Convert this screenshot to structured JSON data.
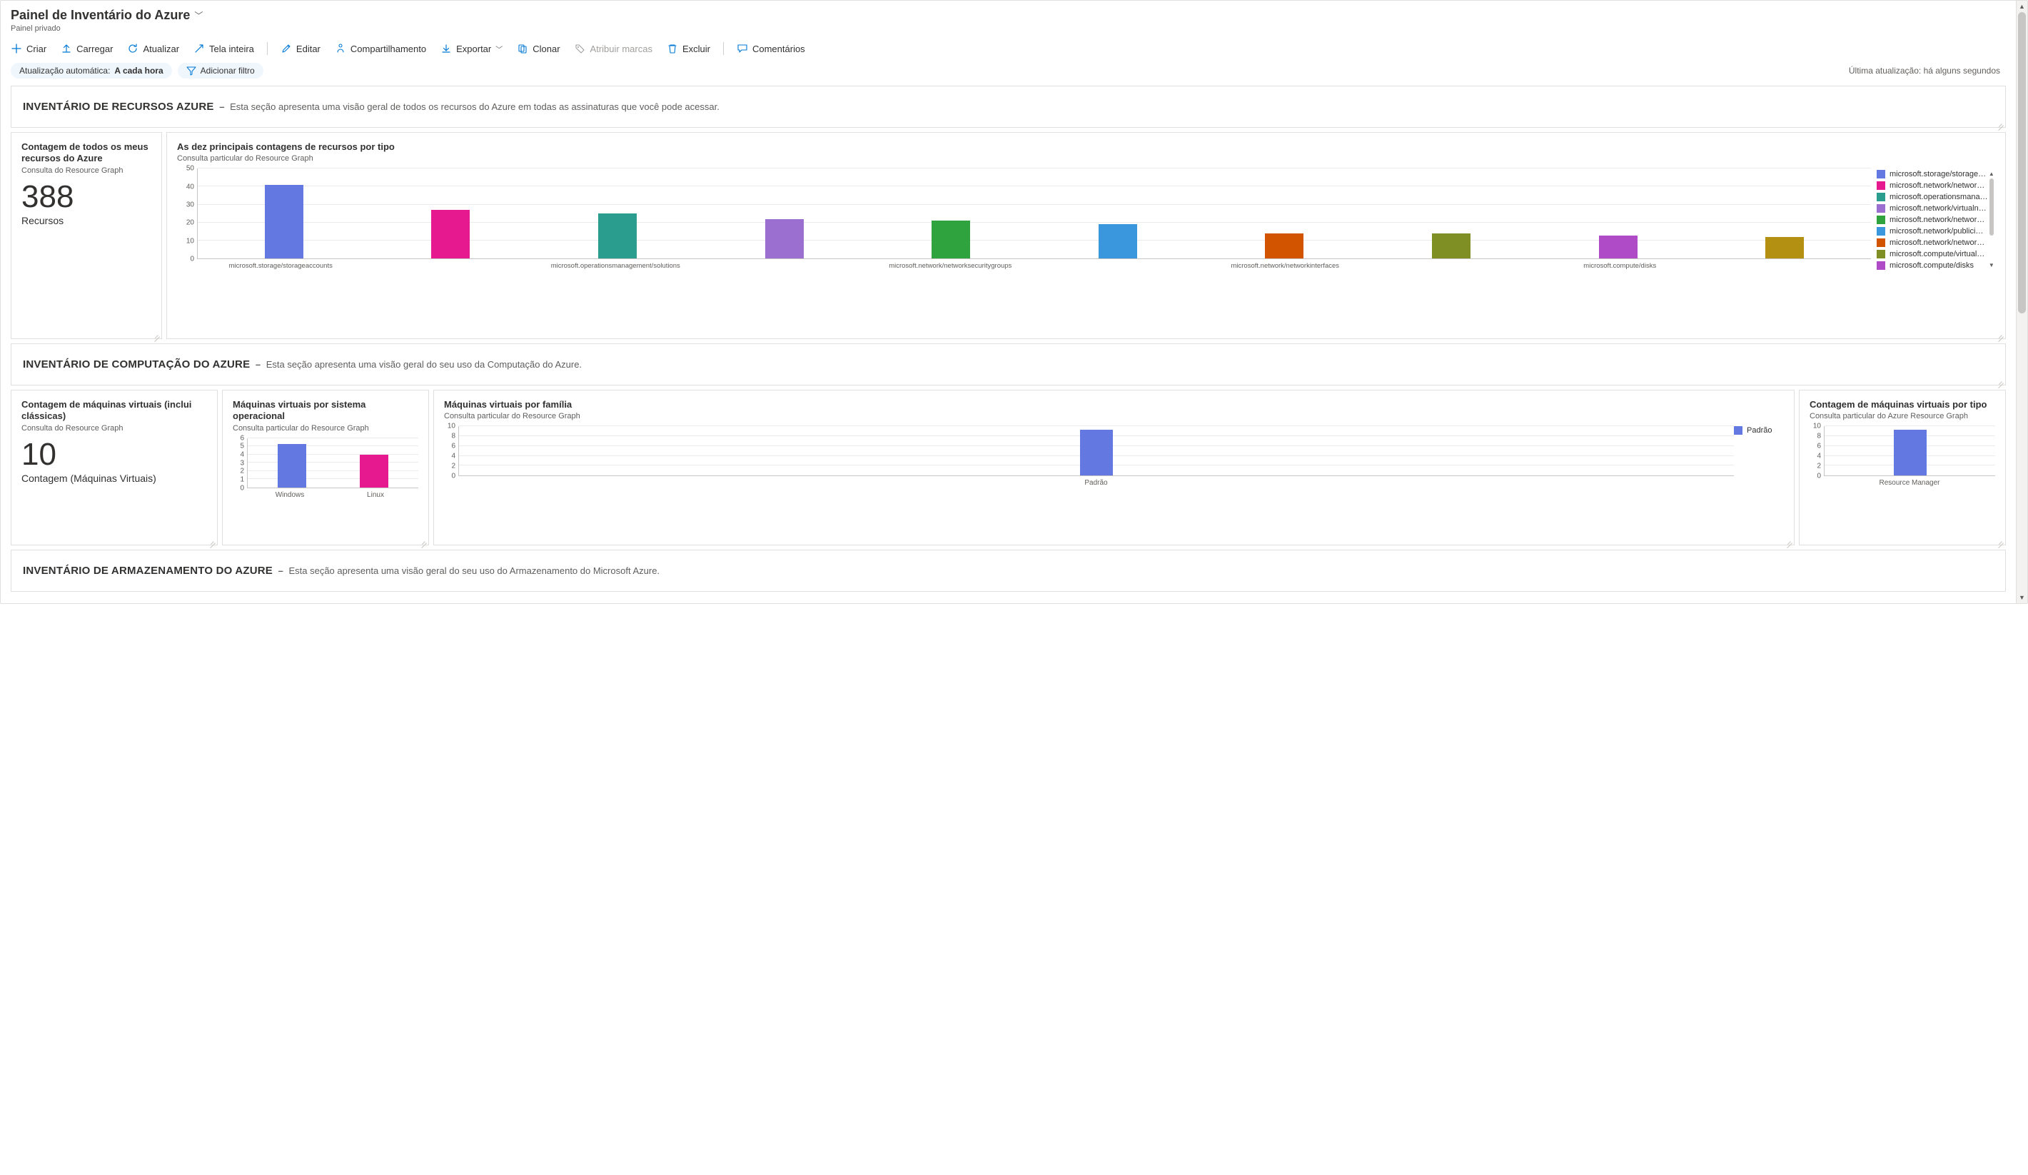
{
  "header": {
    "title": "Painel de Inventário do Azure",
    "subtitle": "Painel privado"
  },
  "toolbar": {
    "create": "Criar",
    "upload": "Carregar",
    "refresh": "Atualizar",
    "fullscreen": "Tela inteira",
    "edit": "Editar",
    "share": "Compartilhamento",
    "export": "Exportar",
    "clone": "Clonar",
    "assign_tags": "Atribuir marcas",
    "delete": "Excluir",
    "feedback": "Comentários"
  },
  "filters": {
    "autorefresh_label": "Atualização automática: ",
    "autorefresh_value": "A cada hora",
    "add_filter": "Adicionar filtro",
    "last_updated_label": "Última atualização: ",
    "last_updated_value": "há alguns segundos"
  },
  "colors": {
    "icon_blue": "#0078d4",
    "grid": "#edebe9",
    "axis": "#c8c6c4",
    "tile_border": "#e1dfdd",
    "pill_bg": "#eff6fc"
  },
  "sections": {
    "resources": {
      "title": "INVENTÁRIO DE RECURSOS AZURE",
      "desc": "Esta seção apresenta uma visão geral de todos os recursos do Azure em todas as assinaturas que você pode acessar."
    },
    "compute": {
      "title": "INVENTÁRIO DE COMPUTAÇÃO DO AZURE",
      "desc": "Esta seção apresenta uma visão geral do seu uso da Computação do Azure."
    },
    "storage": {
      "title": "INVENTÁRIO DE ARMAZENAMENTO DO AZURE",
      "desc": "Esta seção apresenta uma visão geral do seu uso do Armazenamento do Microsoft Azure."
    }
  },
  "tiles": {
    "count_all": {
      "title": "Contagem de todos os meus recursos do Azure",
      "subtitle": "Consulta do Resource Graph",
      "value": "388",
      "value_label": "Recursos"
    },
    "top10_by_type": {
      "title": "As dez principais contagens de recursos por tipo",
      "subtitle": "Consulta particular do Resource Graph",
      "type": "bar",
      "ymax": 50,
      "ytick_step": 10,
      "bars": [
        {
          "value": 41,
          "color": "#6378e0",
          "xlabel": "microsoft.storage/storageaccounts"
        },
        {
          "value": 27,
          "color": "#e61a8e",
          "xlabel": ""
        },
        {
          "value": 25,
          "color": "#2a9d8f",
          "xlabel": "microsoft.operationsmanagement/solutions"
        },
        {
          "value": 22,
          "color": "#9a6fcf",
          "xlabel": ""
        },
        {
          "value": 21,
          "color": "#2fa33e",
          "xlabel": "microsoft.network/networksecuritygroups"
        },
        {
          "value": 19,
          "color": "#3a96dd",
          "xlabel": ""
        },
        {
          "value": 14,
          "color": "#d35400",
          "xlabel": "microsoft.network/networkinterfaces"
        },
        {
          "value": 14,
          "color": "#7f8f23",
          "xlabel": ""
        },
        {
          "value": 13,
          "color": "#b04bc7",
          "xlabel": "microsoft.compute/disks"
        },
        {
          "value": 12,
          "color": "#b38f12",
          "xlabel": ""
        }
      ],
      "legend": [
        {
          "color": "#6378e0",
          "label": "microsoft.storage/storage…"
        },
        {
          "color": "#e61a8e",
          "label": "microsoft.network/networ…"
        },
        {
          "color": "#2a9d8f",
          "label": "microsoft.operationsmana…"
        },
        {
          "color": "#9a6fcf",
          "label": "microsoft.network/virtualn…"
        },
        {
          "color": "#2fa33e",
          "label": "microsoft.network/networ…"
        },
        {
          "color": "#3a96dd",
          "label": "microsoft.network/publici…"
        },
        {
          "color": "#d35400",
          "label": "microsoft.network/networ…"
        },
        {
          "color": "#7f8f23",
          "label": "microsoft.compute/virtual…"
        },
        {
          "color": "#b04bc7",
          "label": "microsoft.compute/disks"
        }
      ]
    },
    "vm_count": {
      "title": "Contagem de máquinas virtuais (inclui clássicas)",
      "subtitle": "Consulta do Resource Graph",
      "value": "10",
      "value_label": "Contagem (Máquinas Virtuais)"
    },
    "vm_by_os": {
      "title": "Máquinas virtuais por sistema operacional",
      "subtitle": "Consulta particular do Resource Graph",
      "type": "bar",
      "ymax": 6,
      "ytick_step": 1,
      "bars": [
        {
          "value": 5.3,
          "color": "#6378e0",
          "xlabel": "Windows"
        },
        {
          "value": 4.0,
          "color": "#e61a8e",
          "xlabel": "Linux"
        }
      ]
    },
    "vm_by_family": {
      "title": "Máquinas virtuais por família",
      "subtitle": "Consulta particular do Resource Graph",
      "type": "bar",
      "ymax": 10,
      "ytick_step": 2,
      "bars": [
        {
          "value": 9.3,
          "color": "#6378e0",
          "xlabel": "Padrão"
        }
      ],
      "legend": [
        {
          "color": "#6378e0",
          "label": "Padrão"
        }
      ]
    },
    "vm_by_type": {
      "title": "Contagem de máquinas virtuais por tipo",
      "subtitle": "Consulta particular do Azure Resource Graph",
      "type": "bar",
      "ymax": 10,
      "ytick_step": 2,
      "bars": [
        {
          "value": 9.3,
          "color": "#6378e0",
          "xlabel": "Resource Manager"
        }
      ]
    }
  }
}
